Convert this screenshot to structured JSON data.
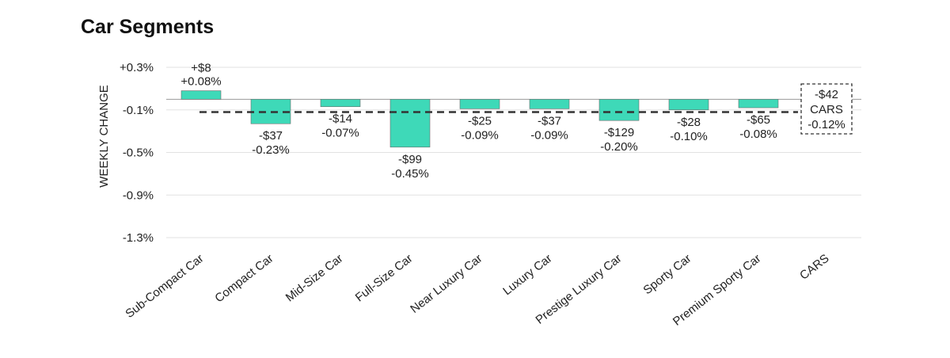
{
  "title": "Car Segments",
  "chart_data": {
    "type": "bar",
    "title": "Car Segments",
    "xlabel": "",
    "ylabel": "WEEKLY CHANGE",
    "ylim": [
      -1.3,
      0.3
    ],
    "yticks": [
      "+0.3%",
      "-0.1%",
      "-0.5%",
      "-0.9%",
      "-1.3%"
    ],
    "ytick_values": [
      0.3,
      -0.1,
      -0.5,
      -0.9,
      -1.3
    ],
    "grid": true,
    "bar_color": "#3ed9b8",
    "categories": [
      "Sub-Compact Car",
      "Compact Car",
      "Mid-Size Car",
      "Full-Size Car",
      "Near Luxury Car",
      "Luxury Car",
      "Prestige Luxury Car",
      "Sporty Car",
      "Premium Sporty Car"
    ],
    "values": [
      0.08,
      -0.23,
      -0.07,
      -0.45,
      -0.09,
      -0.09,
      -0.2,
      -0.1,
      -0.08
    ],
    "dollar_labels": [
      "+$8",
      "-$37",
      "-$14",
      "-$99",
      "-$25",
      "-$37",
      "-$129",
      "-$28",
      "-$65"
    ],
    "pct_labels": [
      "+0.08%",
      "-0.23%",
      "-0.07%",
      "-0.45%",
      "-0.09%",
      "-0.09%",
      "-0.20%",
      "-0.10%",
      "-0.08%"
    ],
    "total": {
      "category": "CARS",
      "value": -0.12,
      "dollar_label": "-$42",
      "name_label": "CARS",
      "pct_label": "-0.12%"
    }
  }
}
